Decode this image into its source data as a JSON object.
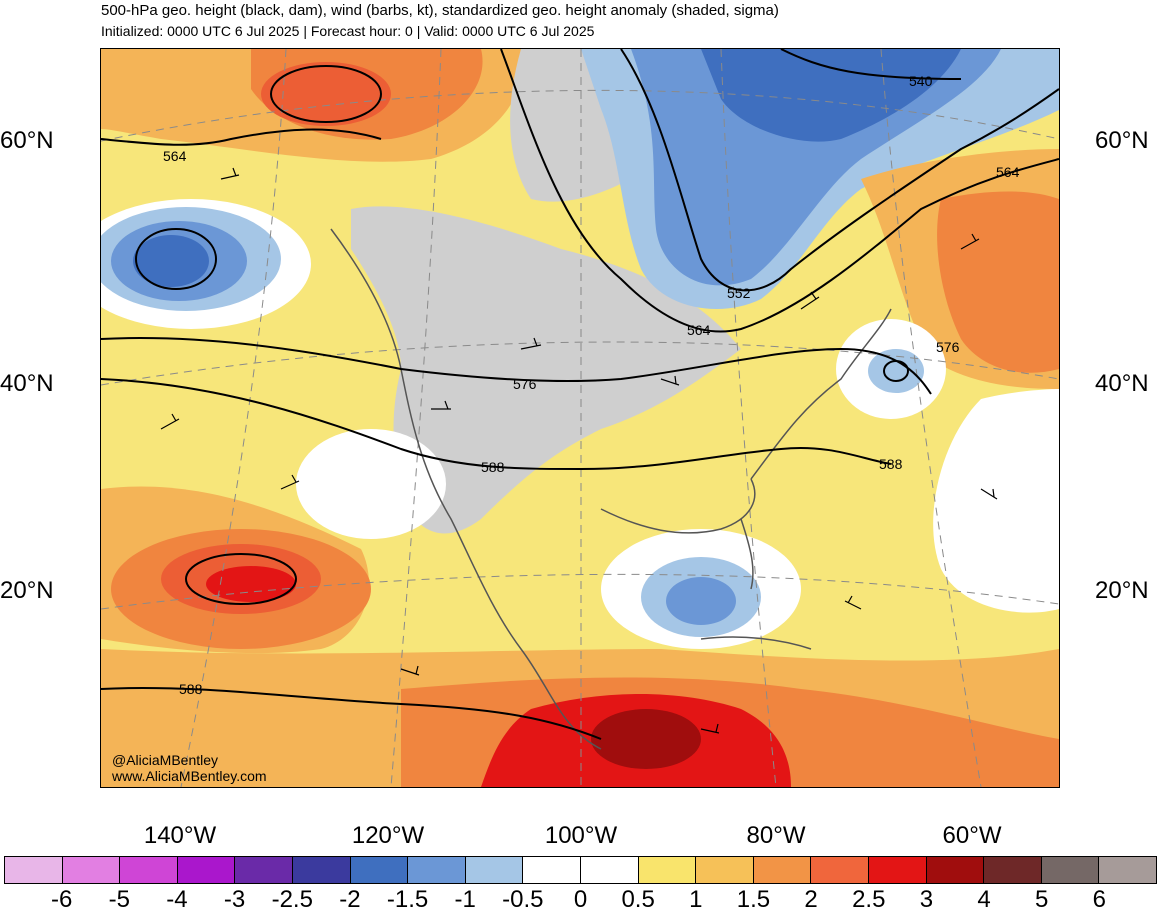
{
  "header": {
    "title": "500-hPa geo. height (black, dam), wind (barbs, kt), standardized geo. height anomaly (shaded, sigma)",
    "subtitle": "Initialized: 0000 UTC 6 Jul 2025 | Forecast hour: 0 | Valid: 0000 UTC 6 Jul 2025"
  },
  "map": {
    "lat_labels": [
      "60°N",
      "40°N",
      "20°N"
    ],
    "lon_labels": [
      "140°W",
      "120°W",
      "100°W",
      "80°W",
      "60°W"
    ],
    "contour_labels": [
      "540",
      "564",
      "564",
      "552",
      "564",
      "576",
      "576",
      "588",
      "588",
      "588"
    ],
    "credit": {
      "handle": "@AliciaMBentley",
      "website": "www.AliciaMBentley.com"
    }
  },
  "colorbar": {
    "colors": [
      "#e8b6e8",
      "#e27fe2",
      "#cf45d6",
      "#aa17cc",
      "#6a2aa8",
      "#3b3a9e",
      "#3f6fbf",
      "#6b97d6",
      "#a5c6e6",
      "#ffffff",
      "#ffffff",
      "#f9e46c",
      "#f6c158",
      "#f29446",
      "#f0663c",
      "#e31515",
      "#a00d0d",
      "#6e2828",
      "#756866",
      "#a69b99"
    ],
    "ticks": [
      "-6",
      "-5",
      "-4",
      "-3",
      "-2.5",
      "-2",
      "-1.5",
      "-1",
      "-0.5",
      "0",
      "0.5",
      "1",
      "1.5",
      "2",
      "2.5",
      "3",
      "4",
      "5",
      "6"
    ]
  }
}
